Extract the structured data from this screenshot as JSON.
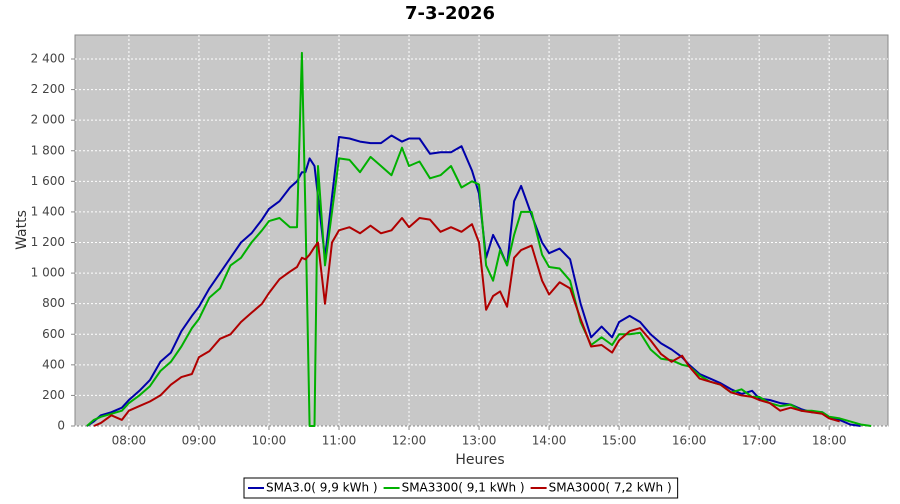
{
  "chart_data": {
    "type": "line",
    "title": "7-3-2026",
    "x_label": "Heures",
    "y_label": "Watts",
    "xlim": [
      7.23,
      18.84
    ],
    "ylim": [
      0,
      2557
    ],
    "xticks": [
      {
        "value": 8,
        "label": "08:00"
      },
      {
        "value": 9,
        "label": "09:00"
      },
      {
        "value": 10,
        "label": "10:00"
      },
      {
        "value": 11,
        "label": "11:00"
      },
      {
        "value": 12,
        "label": "12:00"
      },
      {
        "value": 13,
        "label": "13:00"
      },
      {
        "value": 14,
        "label": "14:00"
      },
      {
        "value": 15,
        "label": "15:00"
      },
      {
        "value": 16,
        "label": "16:00"
      },
      {
        "value": 17,
        "label": "17:00"
      },
      {
        "value": 18,
        "label": "18:00"
      }
    ],
    "yticks": [
      0,
      200,
      400,
      600,
      800,
      {
        "value": 1000,
        "label": "1 000"
      },
      {
        "value": 1200,
        "label": "1 200"
      },
      {
        "value": 1400,
        "label": "1 400"
      },
      {
        "value": 1600,
        "label": "1 600"
      },
      {
        "value": 1800,
        "label": "1 800"
      },
      {
        "value": 2000,
        "label": "2 000"
      },
      {
        "value": 2200,
        "label": "2 200"
      },
      {
        "value": 2400,
        "label": "2 400"
      }
    ],
    "grid": true,
    "x": [
      7.4,
      7.5,
      7.6,
      7.75,
      7.9,
      8.0,
      8.15,
      8.3,
      8.45,
      8.6,
      8.75,
      8.9,
      9.0,
      9.15,
      9.3,
      9.45,
      9.6,
      9.75,
      9.9,
      10.0,
      10.15,
      10.3,
      10.4,
      10.47,
      10.52,
      10.58,
      10.65,
      10.7,
      10.8,
      10.9,
      11.0,
      11.15,
      11.3,
      11.45,
      11.6,
      11.75,
      11.9,
      12.0,
      12.15,
      12.3,
      12.45,
      12.6,
      12.75,
      12.9,
      13.0,
      13.1,
      13.2,
      13.3,
      13.4,
      13.5,
      13.6,
      13.75,
      13.9,
      14.0,
      14.15,
      14.3,
      14.45,
      14.6,
      14.75,
      14.9,
      15.0,
      15.15,
      15.3,
      15.45,
      15.6,
      15.75,
      15.9,
      16.0,
      16.15,
      16.3,
      16.45,
      16.6,
      16.75,
      16.9,
      17.0,
      17.15,
      17.3,
      17.45,
      17.6,
      17.75,
      17.9,
      18.0,
      18.15,
      18.3,
      18.45,
      18.6
    ],
    "series": [
      {
        "name": "SMA3.0( 9,9 kWh )",
        "color": "#0000aa",
        "values": [
          0,
          30,
          70,
          90,
          120,
          170,
          230,
          300,
          420,
          480,
          620,
          720,
          780,
          900,
          1000,
          1100,
          1200,
          1260,
          1350,
          1420,
          1470,
          1560,
          1600,
          1660,
          1660,
          1750,
          1700,
          1500,
          1100,
          1500,
          1890,
          1880,
          1860,
          1850,
          1850,
          1900,
          1860,
          1880,
          1880,
          1780,
          1790,
          1790,
          1830,
          1670,
          1520,
          1100,
          1250,
          1160,
          1050,
          1470,
          1570,
          1380,
          1200,
          1130,
          1160,
          1090,
          800,
          580,
          650,
          580,
          680,
          720,
          680,
          600,
          540,
          500,
          450,
          400,
          340,
          310,
          280,
          240,
          210,
          230,
          180,
          170,
          150,
          140,
          110,
          90,
          90,
          60,
          40,
          10,
          0,
          null
        ]
      },
      {
        "name": "SMA3300( 9,1 kWh )",
        "color": "#00b000",
        "values": [
          0,
          40,
          60,
          80,
          100,
          150,
          200,
          260,
          360,
          420,
          520,
          640,
          700,
          840,
          900,
          1050,
          1100,
          1200,
          1280,
          1340,
          1360,
          1300,
          1300,
          2440,
          1400,
          0,
          0,
          1700,
          1050,
          1400,
          1750,
          1740,
          1660,
          1760,
          1700,
          1640,
          1820,
          1700,
          1730,
          1620,
          1640,
          1700,
          1560,
          1600,
          1580,
          1050,
          950,
          1150,
          1050,
          1250,
          1400,
          1400,
          1120,
          1040,
          1030,
          950,
          680,
          530,
          580,
          530,
          600,
          600,
          610,
          500,
          440,
          430,
          400,
          390,
          330,
          290,
          270,
          220,
          240,
          190,
          190,
          150,
          130,
          140,
          100,
          100,
          90,
          60,
          50,
          30,
          10,
          0
        ]
      },
      {
        "name": "SMA3000( 7,2 kWh )",
        "color": "#b00000",
        "values": [
          null,
          0,
          20,
          70,
          40,
          100,
          130,
          160,
          200,
          270,
          320,
          340,
          450,
          490,
          570,
          600,
          680,
          740,
          800,
          870,
          960,
          1010,
          1040,
          1100,
          1090,
          1120,
          1170,
          1200,
          800,
          1200,
          1280,
          1300,
          1260,
          1310,
          1260,
          1280,
          1360,
          1300,
          1360,
          1350,
          1270,
          1300,
          1270,
          1320,
          1200,
          760,
          850,
          880,
          780,
          1100,
          1150,
          1180,
          950,
          860,
          940,
          900,
          700,
          520,
          530,
          480,
          560,
          620,
          640,
          560,
          470,
          420,
          460,
          390,
          310,
          290,
          270,
          220,
          200,
          190,
          170,
          150,
          100,
          120,
          100,
          90,
          80,
          50,
          30,
          null,
          null,
          null
        ]
      }
    ]
  }
}
